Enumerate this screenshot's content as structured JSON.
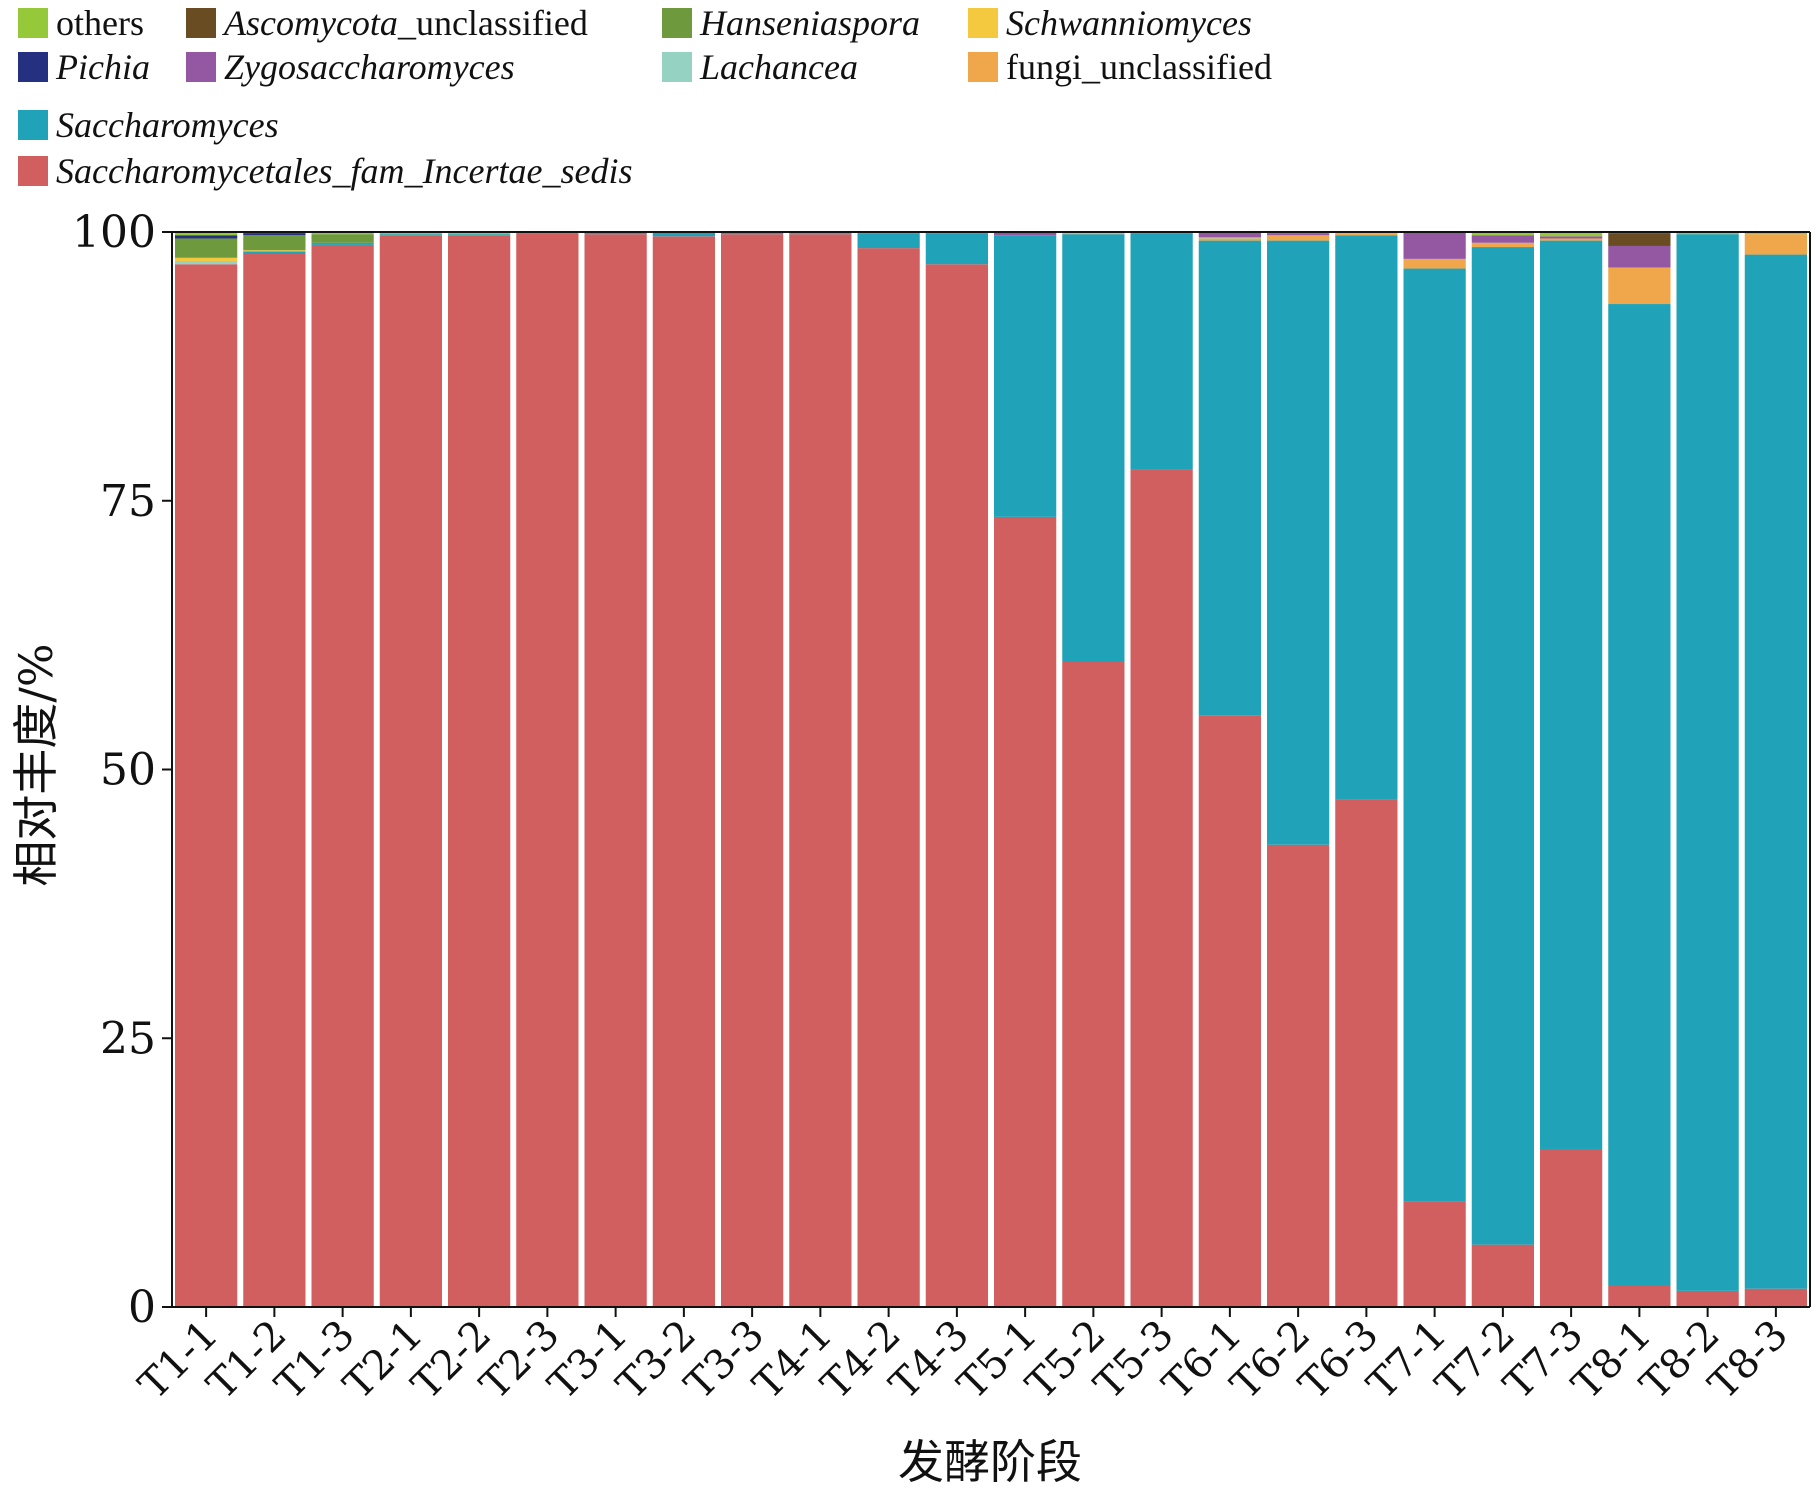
{
  "chart_data": {
    "type": "bar",
    "stacked": true,
    "xlabel": "发酵阶段",
    "ylabel": "相对丰度/%",
    "ylim": [
      0,
      100
    ],
    "yticks": [
      0,
      25,
      50,
      75,
      100
    ],
    "grid": false,
    "legend_position": "top",
    "categories": [
      "T1-1",
      "T1-2",
      "T1-3",
      "T2-1",
      "T2-2",
      "T2-3",
      "T3-1",
      "T3-2",
      "T3-3",
      "T4-1",
      "T4-2",
      "T4-3",
      "T5-1",
      "T5-2",
      "T5-3",
      "T6-1",
      "T6-2",
      "T6-3",
      "T7-1",
      "T7-2",
      "T7-3",
      "T8-1",
      "T8-2",
      "T8-3"
    ],
    "series": [
      {
        "name": "Saccharomycetales_fam_Incertae_sedis",
        "italic": true,
        "color": "#d25f5f",
        "values": [
          97.0,
          98.0,
          98.8,
          99.7,
          99.7,
          99.9,
          99.8,
          99.6,
          99.8,
          99.8,
          98.5,
          97.0,
          73.5,
          60.0,
          77.9,
          55.0,
          43.0,
          47.2,
          9.8,
          5.8,
          14.7,
          2.0,
          1.5,
          1.7
        ]
      },
      {
        "name": "Saccharomyces",
        "italic": true,
        "color": "#20a3b8",
        "values": [
          0.0,
          0.2,
          0.2,
          0.1,
          0.1,
          0.1,
          0.2,
          0.4,
          0.2,
          0.1,
          1.4,
          2.9,
          26.2,
          39.8,
          22.0,
          44.2,
          56.2,
          52.5,
          86.8,
          92.8,
          84.5,
          91.3,
          98.3,
          96.2
        ]
      },
      {
        "name": "fungi_unclassified",
        "italic": false,
        "color": "#f0a64a",
        "values": [
          0,
          0,
          0,
          0,
          0,
          0,
          0,
          0,
          0,
          0,
          0,
          0,
          0,
          0.1,
          0,
          0.2,
          0.5,
          0.2,
          0.9,
          0.4,
          0.2,
          3.4,
          0,
          1.9
        ]
      },
      {
        "name": "Lachancea",
        "italic": true,
        "color": "#95d2c1",
        "values": [
          0.3,
          0,
          0,
          0,
          0,
          0,
          0,
          0,
          0,
          0,
          0,
          0,
          0,
          0,
          0,
          0.1,
          0,
          0,
          0,
          0,
          0,
          0,
          0,
          0
        ]
      },
      {
        "name": "Schwanniomyces",
        "italic": true,
        "color": "#f4c93f",
        "values": [
          0.3,
          0.1,
          0,
          0,
          0,
          0,
          0,
          0,
          0,
          0,
          0,
          0,
          0,
          0,
          0,
          0,
          0,
          0,
          0,
          0,
          0,
          0,
          0,
          0
        ]
      },
      {
        "name": "Hanseniaspora",
        "italic": true,
        "color": "#6e9a3d",
        "values": [
          1.8,
          1.4,
          0.8,
          0,
          0,
          0,
          0,
          0,
          0,
          0,
          0,
          0,
          0,
          0,
          0,
          0,
          0,
          0,
          0,
          0,
          0,
          0,
          0,
          0
        ]
      },
      {
        "name": "Zygosaccharomyces",
        "italic": true,
        "color": "#9458a2",
        "values": [
          0,
          0,
          0,
          0,
          0,
          0,
          0,
          0,
          0,
          0,
          0,
          0,
          0.3,
          0,
          0,
          0.5,
          0.2,
          0,
          2.5,
          0.7,
          0.2,
          2.0,
          0,
          0
        ]
      },
      {
        "name": "Pichia",
        "italic": true,
        "color": "#253080",
        "values": [
          0.3,
          0.2,
          0,
          0,
          0,
          0,
          0,
          0,
          0,
          0,
          0,
          0,
          0,
          0,
          0,
          0,
          0,
          0,
          0,
          0,
          0,
          0,
          0,
          0
        ]
      },
      {
        "name": "Ascomycota_unclassified",
        "italic": false,
        "italic_part": "Ascomycota",
        "color": "#6a4c22",
        "values": [
          0,
          0,
          0,
          0,
          0,
          0,
          0,
          0,
          0,
          0,
          0,
          0,
          0,
          0,
          0,
          0,
          0,
          0,
          0,
          0,
          0,
          1.2,
          0,
          0
        ]
      },
      {
        "name": "others",
        "italic": false,
        "color": "#96c93a",
        "values": [
          0.3,
          0.1,
          0.2,
          0.2,
          0.2,
          0,
          0,
          0,
          0,
          0.1,
          0.1,
          0.1,
          0,
          0.1,
          0.1,
          0,
          0.1,
          0.1,
          0,
          0.3,
          0.4,
          0.1,
          0.2,
          0.2
        ]
      }
    ],
    "legend_order": [
      "others",
      "Ascomycota_unclassified",
      "Hanseniaspora",
      "Schwanniomyces",
      "Pichia",
      "Zygosaccharomyces",
      "Lachancea",
      "fungi_unclassified",
      "Saccharomyces",
      "Saccharomycetales_fam_Incertae_sedis"
    ]
  }
}
